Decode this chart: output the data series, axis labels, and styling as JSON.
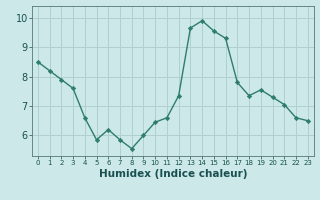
{
  "x": [
    0,
    1,
    2,
    3,
    4,
    5,
    6,
    7,
    8,
    9,
    10,
    11,
    12,
    13,
    14,
    15,
    16,
    17,
    18,
    19,
    20,
    21,
    22,
    23
  ],
  "y": [
    8.5,
    8.2,
    7.9,
    7.6,
    6.6,
    5.85,
    6.2,
    5.85,
    5.55,
    6.0,
    6.45,
    6.6,
    7.35,
    9.65,
    9.9,
    9.55,
    9.3,
    7.8,
    7.35,
    7.55,
    7.3,
    7.05,
    6.6,
    6.5
  ],
  "line_color": "#2e7d6e",
  "marker": "D",
  "marker_size": 2.2,
  "linewidth": 1.0,
  "bg_color": "#cce8e8",
  "grid_color": "#b0d0d0",
  "xlabel": "Humidex (Indice chaleur)",
  "xlabel_fontsize": 7.5,
  "tick_fontsize_x": 5.0,
  "tick_fontsize_y": 7.0,
  "ylim": [
    5.3,
    10.4
  ],
  "yticks": [
    6,
    7,
    8,
    9,
    10
  ],
  "xlim": [
    -0.5,
    23.5
  ],
  "xticks": [
    0,
    1,
    2,
    3,
    4,
    5,
    6,
    7,
    8,
    9,
    10,
    11,
    12,
    13,
    14,
    15,
    16,
    17,
    18,
    19,
    20,
    21,
    22,
    23
  ]
}
